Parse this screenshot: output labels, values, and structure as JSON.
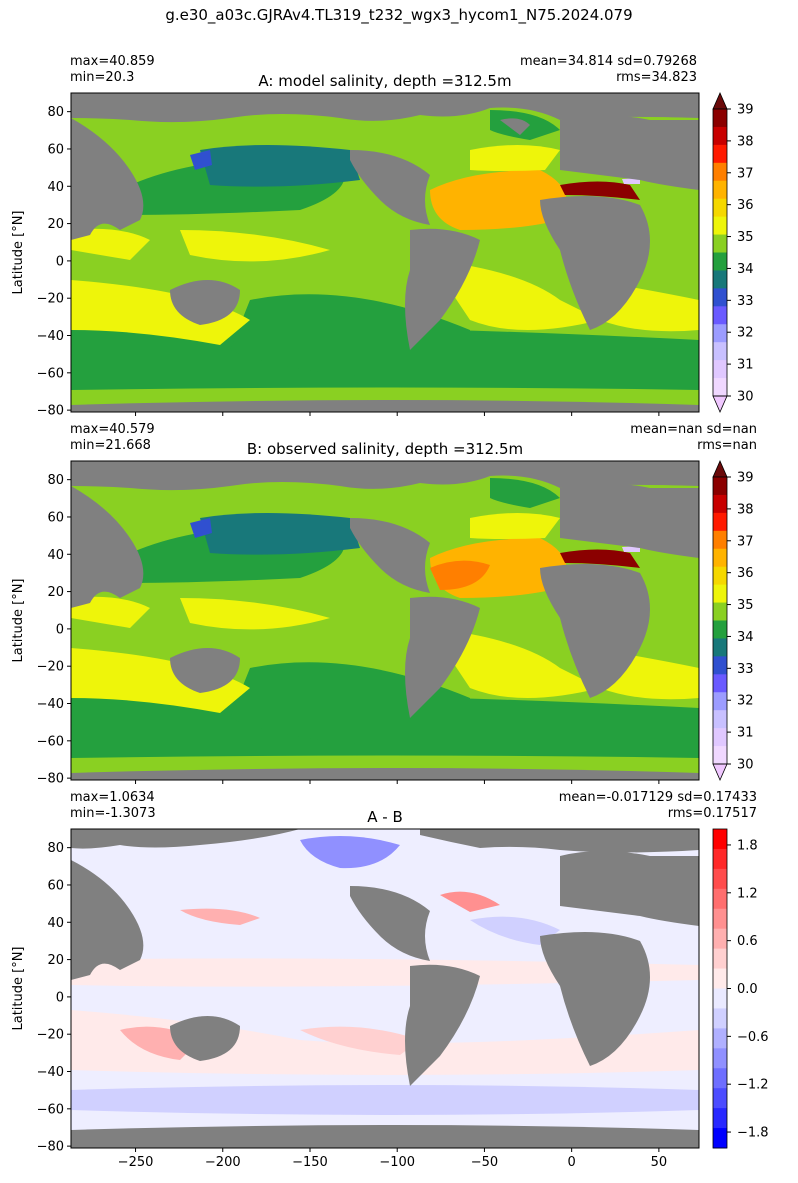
{
  "suptitle": "g.e30_a03c.GJRAv4.TL319_t232_wgx3_hycom1_N75.2024.079",
  "axes": {
    "x_ticks": [
      -250,
      -200,
      -150,
      -100,
      -50,
      0,
      50
    ],
    "x_tick_labels": [
      "−250",
      "−200",
      "−150",
      "−100",
      "−50",
      "0",
      "50"
    ],
    "y_ticks": [
      80,
      60,
      40,
      20,
      0,
      -20,
      -40,
      -60,
      -80
    ],
    "y_tick_labels": [
      "80",
      "60",
      "40",
      "20",
      "0",
      "−20",
      "−40",
      "−60",
      "−80"
    ],
    "ylabel": "Latitude [°N]",
    "xlim": [
      -287,
      73
    ],
    "ylim": [
      -81,
      90
    ]
  },
  "panels": [
    {
      "title": "A: model salinity, depth =312.5m",
      "stats_left": "max=40.859\nmin=20.3",
      "stats_right": "mean=34.814 sd=0.79268\nrms=34.823"
    },
    {
      "title": "B: observed salinity, depth =312.5m",
      "stats_left": "max=40.579\nmin=21.668",
      "stats_right": "mean=nan sd=nan\nrms=nan"
    },
    {
      "title": "A - B",
      "stats_left": "max=1.0634\nmin=-1.3073",
      "stats_right": "mean=-0.017129 sd=0.17433\nrms=0.17517"
    }
  ],
  "colorbar_salinity": {
    "tick_labels": [
      "39",
      "38",
      "37",
      "36",
      "35",
      "34",
      "33",
      "32",
      "31",
      "30"
    ],
    "colors_top_to_bottom": [
      "#8b0000",
      "#c80000",
      "#ff1a00",
      "#ff7f00",
      "#ffb300",
      "#f5d800",
      "#eef50a",
      "#8ad022",
      "#24a03e",
      "#18787a",
      "#3050d0",
      "#6a5aff",
      "#9c9cff",
      "#c8c0ff",
      "#e0c8ff",
      "#f0d8ff"
    ],
    "over_color": "#6a0a0a",
    "under_color": "#f0c8ff"
  },
  "colorbar_diff": {
    "tick_labels": [
      "1.8",
      "1.2",
      "0.6",
      "0.0",
      "−0.6",
      "−1.2",
      "−1.8"
    ],
    "colors_top_to_bottom": [
      "#ff0000",
      "#ff2828",
      "#ff4c4c",
      "#ff6e6e",
      "#ff9090",
      "#ffb0b0",
      "#ffd0d0",
      "#ffeaea",
      "#eaeaff",
      "#d0d0ff",
      "#b0b0ff",
      "#9090ff",
      "#6e6eff",
      "#4c4cff",
      "#2828ff",
      "#0000ff"
    ]
  },
  "map_colors": {
    "land": "#808080",
    "frame": "#000000"
  },
  "chart_data": [
    {
      "type": "heatmap",
      "title": "A: model salinity, depth =312.5m",
      "ylabel": "Latitude [°N]",
      "xlim": [
        -287,
        73
      ],
      "ylim": [
        -81,
        90
      ],
      "colorbar_range": [
        30,
        39
      ],
      "stats": {
        "max": 40.859,
        "min": 20.3,
        "mean": 34.814,
        "sd": 0.79268,
        "rms": 34.823
      }
    },
    {
      "type": "heatmap",
      "title": "B: observed salinity, depth =312.5m",
      "ylabel": "Latitude [°N]",
      "xlim": [
        -287,
        73
      ],
      "ylim": [
        -81,
        90
      ],
      "colorbar_range": [
        30,
        39
      ],
      "stats": {
        "max": 40.579,
        "min": 21.668,
        "mean": "nan",
        "sd": "nan",
        "rms": "nan"
      }
    },
    {
      "type": "heatmap",
      "title": "A - B",
      "ylabel": "Latitude [°N]",
      "xlim": [
        -287,
        73
      ],
      "ylim": [
        -81,
        90
      ],
      "colorbar_range": [
        -2.0,
        2.0
      ],
      "stats": {
        "max": 1.0634,
        "min": -1.3073,
        "mean": -0.017129,
        "sd": 0.17433,
        "rms": 0.17517
      }
    }
  ]
}
